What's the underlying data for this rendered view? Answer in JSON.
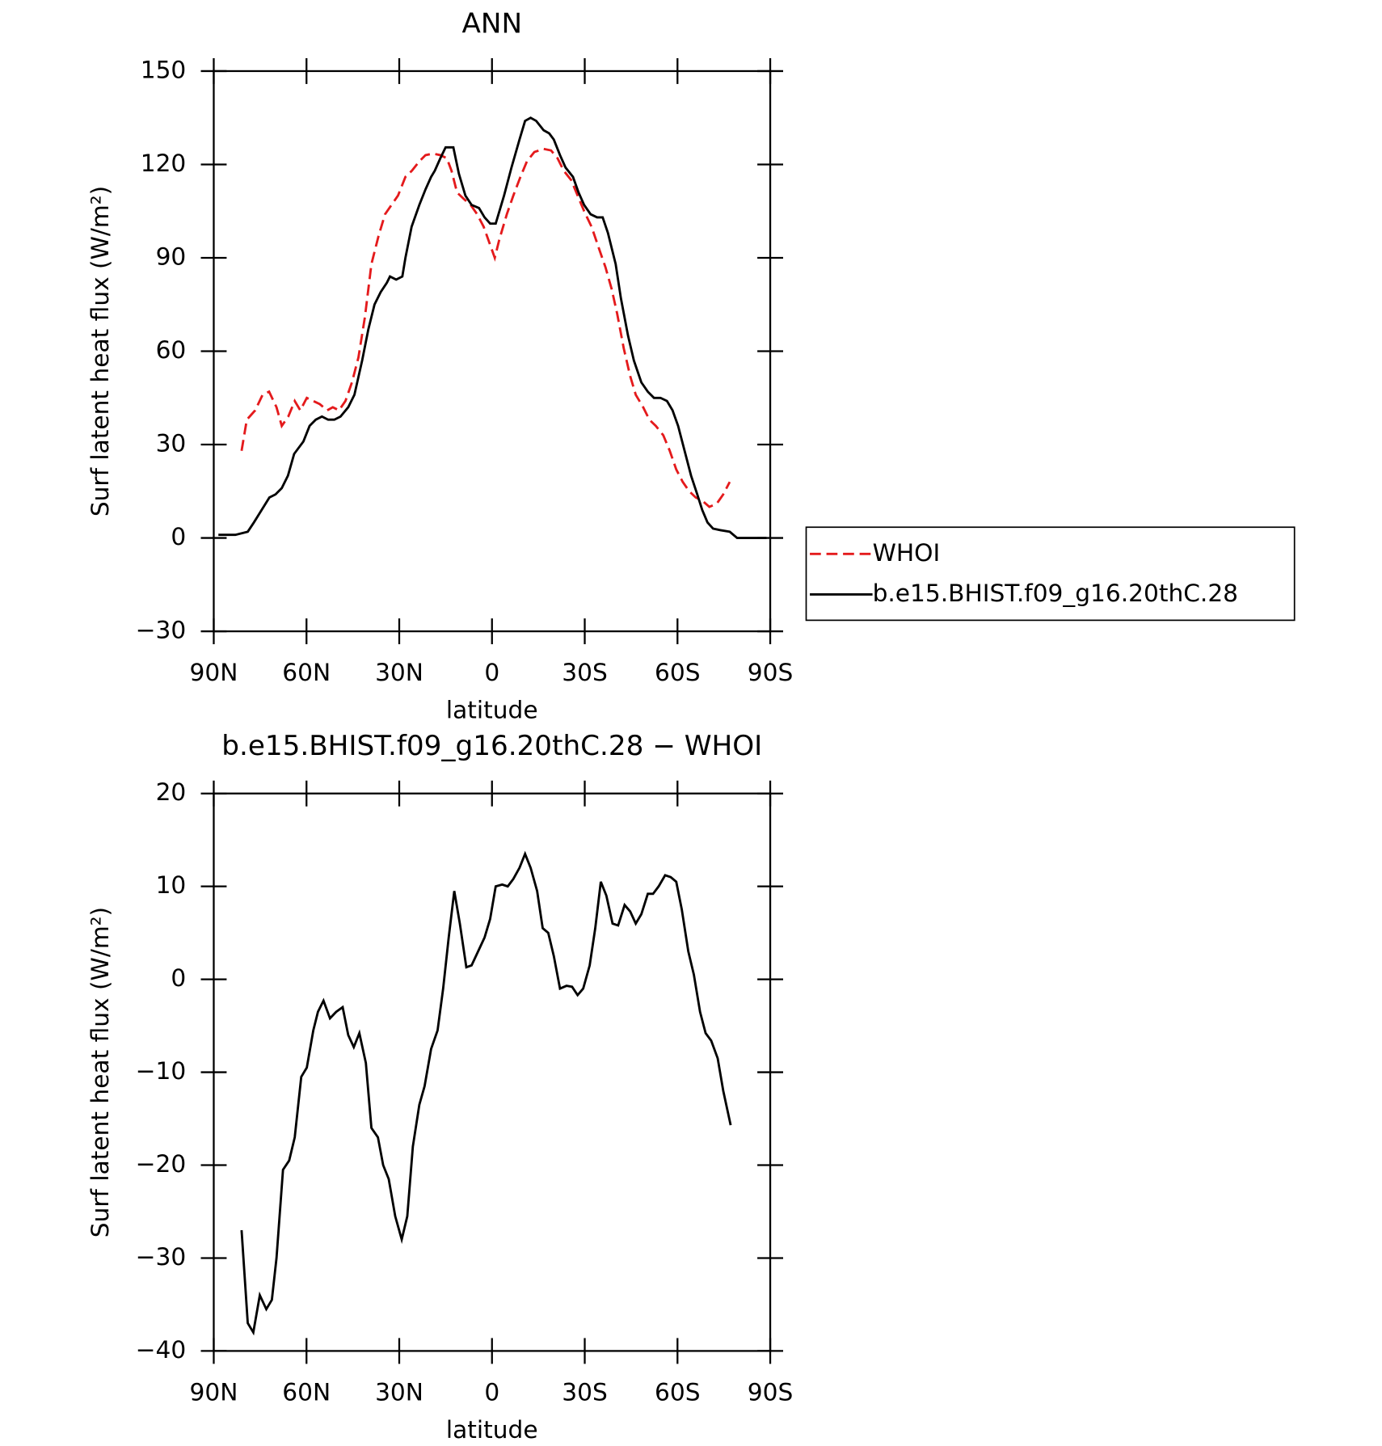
{
  "chart_data": [
    {
      "type": "line",
      "title": "ANN",
      "xlabel": "latitude",
      "ylabel": "Surf latent heat flux (W/m²)",
      "xlim": [
        90,
        -90
      ],
      "xticks": [
        {
          "value": 90,
          "label": "90N"
        },
        {
          "value": 60,
          "label": "60N"
        },
        {
          "value": 30,
          "label": "30N"
        },
        0,
        {
          "value": -30,
          "label": "30S"
        },
        {
          "value": -60,
          "label": "60S"
        },
        {
          "value": -90,
          "label": "90S"
        }
      ],
      "ylim": [
        -30,
        150
      ],
      "yticks": [
        {
          "value": -30,
          "label": "−30"
        },
        0,
        30,
        60,
        90,
        120,
        150
      ],
      "series": [
        {
          "name": "WHOI",
          "color": "#e41a1c",
          "dash": true,
          "x": [
            81,
            79.3,
            76.6,
            74.2,
            72.1,
            69.7,
            68,
            65.9,
            63.8,
            62,
            59.9,
            57.8,
            55.7,
            53.3,
            51.5,
            49.5,
            47.4,
            45.3,
            43.2,
            41.1,
            39,
            36.7,
            34.6,
            32.5,
            30.4,
            28,
            25.9,
            23.5,
            21.5,
            19.1,
            16.7,
            14.6,
            13.1,
            11.3,
            9.2,
            6.9,
            4.8,
            2.7,
            0.9,
            -0.9,
            -2.4,
            -4.8,
            -6.9,
            -9.2,
            -11.3,
            -13.7,
            -16.7,
            -19.1,
            -21.2,
            -23.2,
            -25.6,
            -27.7,
            -29.8,
            -32.2,
            -34.6,
            -36.7,
            -38.7,
            -40.5,
            -42.6,
            -44.7,
            -46.5,
            -48.9,
            -50.9,
            -53,
            -55.4,
            -57.5,
            -59.6,
            -61.7,
            -63.8,
            -65.9,
            -68,
            -70.3,
            -72.7,
            -74.8,
            -76.9
          ],
          "values": [
            28,
            38,
            41,
            46,
            47,
            42,
            36,
            39,
            44,
            41,
            45,
            44,
            43,
            41,
            42,
            41,
            44,
            50,
            58,
            71,
            88,
            97,
            104,
            107,
            110,
            116,
            118,
            121,
            123,
            123.5,
            123,
            122,
            118,
            111,
            109,
            107,
            104,
            100,
            95,
            90,
            96,
            104,
            110,
            116,
            121,
            124,
            125,
            124.5,
            122,
            118,
            115,
            110,
            105,
            100,
            93,
            87,
            80,
            72,
            61,
            52,
            46,
            42,
            38,
            36,
            33,
            28,
            22,
            18,
            15,
            13,
            12,
            10,
            11,
            14,
            18
          ]
        },
        {
          "name": "b.e15.BHIST.f09_g16.20thC.28",
          "color": "#000000",
          "dash": false,
          "x": [
            88.5,
            83,
            79,
            77,
            72,
            70,
            68,
            66,
            64,
            61,
            59,
            57,
            55,
            53,
            51,
            49,
            46.5,
            44.5,
            42,
            40,
            38,
            36,
            34,
            33,
            31,
            29,
            28,
            26,
            23.5,
            21.5,
            19.7,
            18.5,
            16.7,
            15,
            12.5,
            10.7,
            8.6,
            6.6,
            4.2,
            2.4,
            0.6,
            -1.2,
            -3.9,
            -6.3,
            -8.9,
            -10.7,
            -12.5,
            -14.3,
            -16.7,
            -18.5,
            -20,
            -22,
            -23.8,
            -26.2,
            -28,
            -29.8,
            -31.9,
            -34,
            -35.8,
            -37.5,
            -40,
            -41.7,
            -44,
            -45.9,
            -48.3,
            -50.4,
            -52.4,
            -54.5,
            -56.6,
            -58.4,
            -60.2,
            -62.3,
            -64.4,
            -66.4,
            -68,
            -69.7,
            -71.5,
            -73.9,
            -76.9,
            -79.3,
            -85.2,
            -88.8
          ],
          "values": [
            1,
            1,
            2,
            5,
            13,
            14,
            16,
            20,
            27,
            31,
            36,
            38,
            39,
            38,
            38,
            39,
            42,
            46,
            57,
            67,
            75,
            79,
            82,
            84,
            83,
            84,
            90,
            100,
            107,
            112,
            116,
            118,
            122,
            125.5,
            125.5,
            117,
            110,
            107,
            106,
            103,
            101,
            101,
            110,
            119,
            128,
            134,
            135,
            134,
            131,
            130,
            128,
            123,
            119,
            116,
            111,
            107,
            104,
            103,
            103,
            98,
            88,
            77,
            65,
            57,
            50,
            47,
            45,
            45,
            44,
            41,
            36,
            28,
            20,
            14,
            9,
            5,
            3,
            2.5,
            2,
            0,
            0,
            0
          ]
        }
      ]
    },
    {
      "type": "line",
      "title": "b.e15.BHIST.f09_g16.20thC.28 − WHOI",
      "xlabel": "latitude",
      "ylabel": "Surf latent heat flux (W/m²)",
      "xlim": [
        90,
        -90
      ],
      "xticks": [
        {
          "value": 90,
          "label": "90N"
        },
        {
          "value": 60,
          "label": "60N"
        },
        {
          "value": 30,
          "label": "30N"
        },
        0,
        {
          "value": -30,
          "label": "30S"
        },
        {
          "value": -60,
          "label": "60S"
        },
        {
          "value": -90,
          "label": "90S"
        }
      ],
      "ylim": [
        -40,
        20
      ],
      "yticks": [
        {
          "value": -40,
          "label": "−40"
        },
        {
          "value": -30,
          "label": "−30"
        },
        {
          "value": -20,
          "label": "−20"
        },
        {
          "value": -10,
          "label": "−10"
        },
        0,
        10,
        20
      ],
      "series": [
        {
          "color": "#000000",
          "dash": false,
          "x": [
            81,
            79,
            77.2,
            75.1,
            73,
            71.2,
            69.7,
            67.6,
            65.6,
            63.8,
            61.7,
            59.9,
            57.8,
            56.3,
            54.5,
            52.4,
            50.4,
            48.3,
            46.5,
            44.7,
            42.9,
            40.8,
            39,
            36.9,
            35.2,
            33.4,
            31.3,
            29.2,
            27.4,
            25.6,
            23.5,
            21.8,
            19.7,
            17.6,
            15.8,
            14,
            12.2,
            10.4,
            8.3,
            6.6,
            4.5,
            2.4,
            0.6,
            -1.2,
            -3.3,
            -5.1,
            -6.9,
            -8.9,
            -10.7,
            -12.5,
            -14.6,
            -16.4,
            -18.2,
            -20,
            -22,
            -24.1,
            -25.9,
            -27.7,
            -29.5,
            -31.6,
            -33.4,
            -35.2,
            -37,
            -39,
            -40.8,
            -42.9,
            -44.7,
            -46.5,
            -48.3,
            -50.4,
            -52.1,
            -53.9,
            -56,
            -57.8,
            -59.6,
            -61.4,
            -63.5,
            -65.3,
            -67.3,
            -69.1,
            -70.9,
            -73,
            -74.8,
            -77.2
          ],
          "values": [
            -27,
            -37,
            -38,
            -34,
            -35.5,
            -34.5,
            -30,
            -20.5,
            -19.5,
            -17,
            -10.5,
            -9.5,
            -5.5,
            -3.5,
            -2.3,
            -4.2,
            -3.5,
            -3,
            -6,
            -7.3,
            -5.8,
            -9,
            -16,
            -17,
            -20,
            -21.5,
            -25.5,
            -28,
            -25.5,
            -18,
            -13.5,
            -11.5,
            -7.5,
            -5.5,
            -1,
            4.5,
            9.5,
            6,
            1.3,
            1.5,
            3,
            4.5,
            6.5,
            10,
            10.2,
            10,
            10.8,
            12,
            13.5,
            12,
            9.5,
            5.5,
            5,
            2.5,
            -1,
            -0.7,
            -0.8,
            -1.7,
            -1,
            1.5,
            5.5,
            10.5,
            9,
            6,
            5.8,
            8,
            7.3,
            6,
            7,
            9.2,
            9.2,
            10,
            11.2,
            11,
            10.5,
            7.5,
            3,
            0.5,
            -3.5,
            -5.8,
            -6.6,
            -8.5,
            -12,
            -15.7
          ]
        }
      ]
    }
  ]
}
